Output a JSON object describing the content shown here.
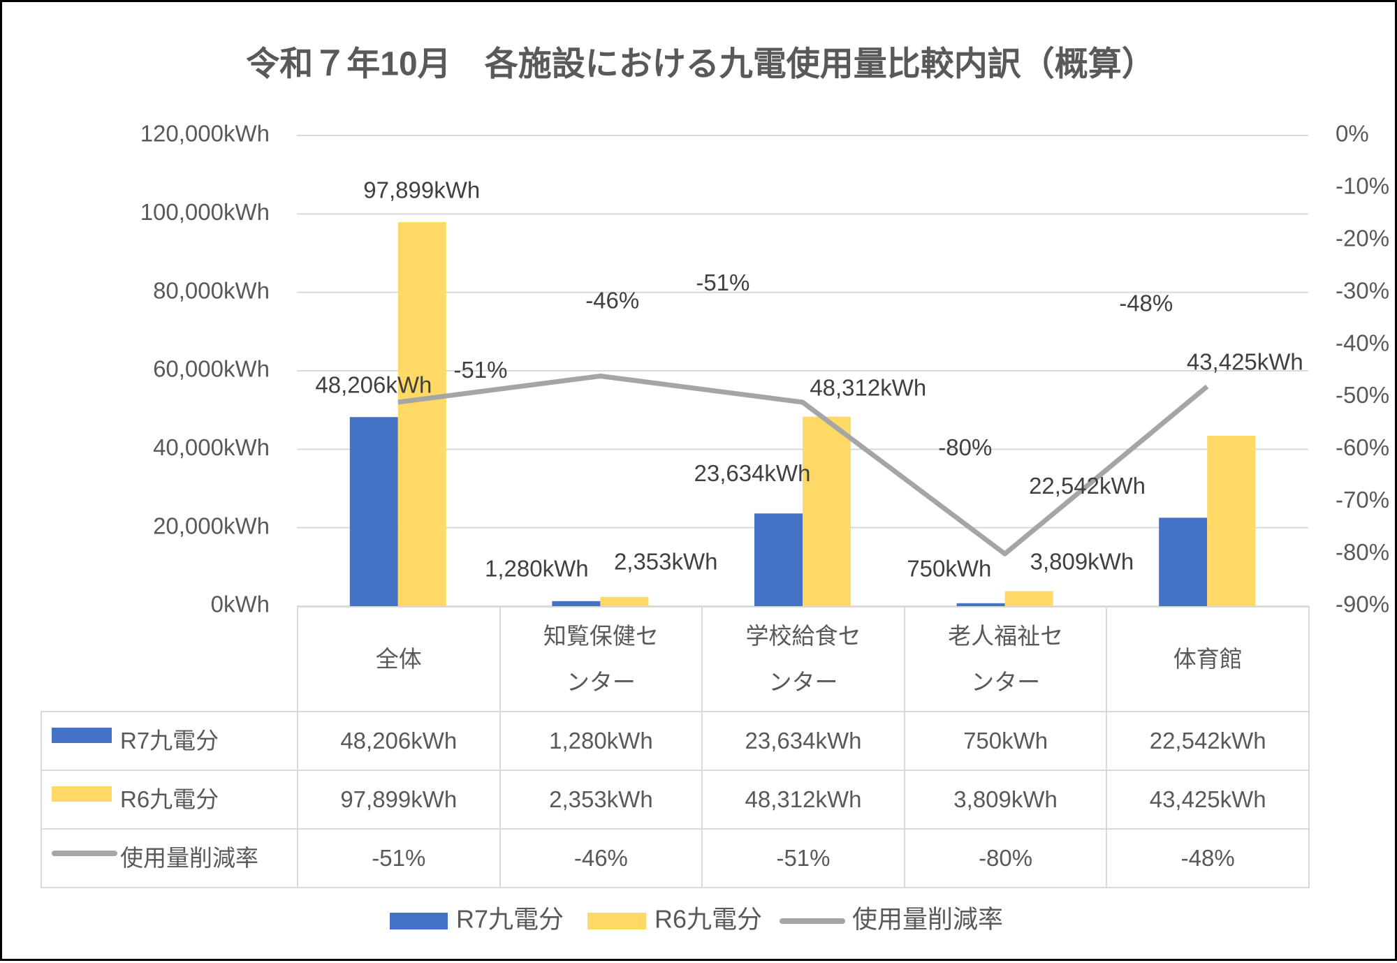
{
  "chart_data": {
    "type": "bar",
    "title": "令和７年10月　各施設における九電使用量比較内訳（概算）",
    "categories": [
      "全体",
      "知覧保健センター",
      "学校給食センター",
      "老人福祉センター",
      "体育館"
    ],
    "series": [
      {
        "name": "R7九電分",
        "color": "#4472c4",
        "values": [
          48206,
          1280,
          23634,
          750,
          22542
        ],
        "value_labels": [
          "48,206kWh",
          "1,280kWh",
          "23,634kWh",
          "750kWh",
          "22,542kWh"
        ]
      },
      {
        "name": "R6九電分",
        "color": "#ffd966",
        "values": [
          97899,
          2353,
          48312,
          3809,
          43425
        ],
        "value_labels": [
          "97,899kWh",
          "2,353kWh",
          "48,312kWh",
          "3,809kWh",
          "43,425kWh"
        ]
      },
      {
        "name": "使用量削減率",
        "type": "line",
        "axis": "y2",
        "color": "#a5a5a5",
        "values": [
          -51,
          -46,
          -51,
          -80,
          -48
        ],
        "value_labels": [
          "-51%",
          "-46%",
          "-51%",
          "-80%",
          "-48%"
        ]
      }
    ],
    "ylim": [
      0,
      120000
    ],
    "yticks": [
      {
        "value": 0,
        "label": "0kWh"
      },
      {
        "value": 20000,
        "label": "20,000kWh"
      },
      {
        "value": 40000,
        "label": "40,000kWh"
      },
      {
        "value": 60000,
        "label": "60,000kWh"
      },
      {
        "value": 80000,
        "label": "80,000kWh"
      },
      {
        "value": 100000,
        "label": "100,000kWh"
      },
      {
        "value": 120000,
        "label": "120,000kWh"
      }
    ],
    "y2lim": [
      -90,
      0
    ],
    "y2ticks": [
      {
        "value": -90,
        "label": "-90%"
      },
      {
        "value": -80,
        "label": "-80%"
      },
      {
        "value": -70,
        "label": "-70%"
      },
      {
        "value": -60,
        "label": "-60%"
      },
      {
        "value": -50,
        "label": "-50%"
      },
      {
        "value": -40,
        "label": "-40%"
      },
      {
        "value": -30,
        "label": "-30%"
      },
      {
        "value": -20,
        "label": "-20%"
      },
      {
        "value": -10,
        "label": "-10%"
      },
      {
        "value": 0,
        "label": "0%"
      }
    ],
    "grid": true,
    "data_table": true,
    "legend": "bottom"
  }
}
